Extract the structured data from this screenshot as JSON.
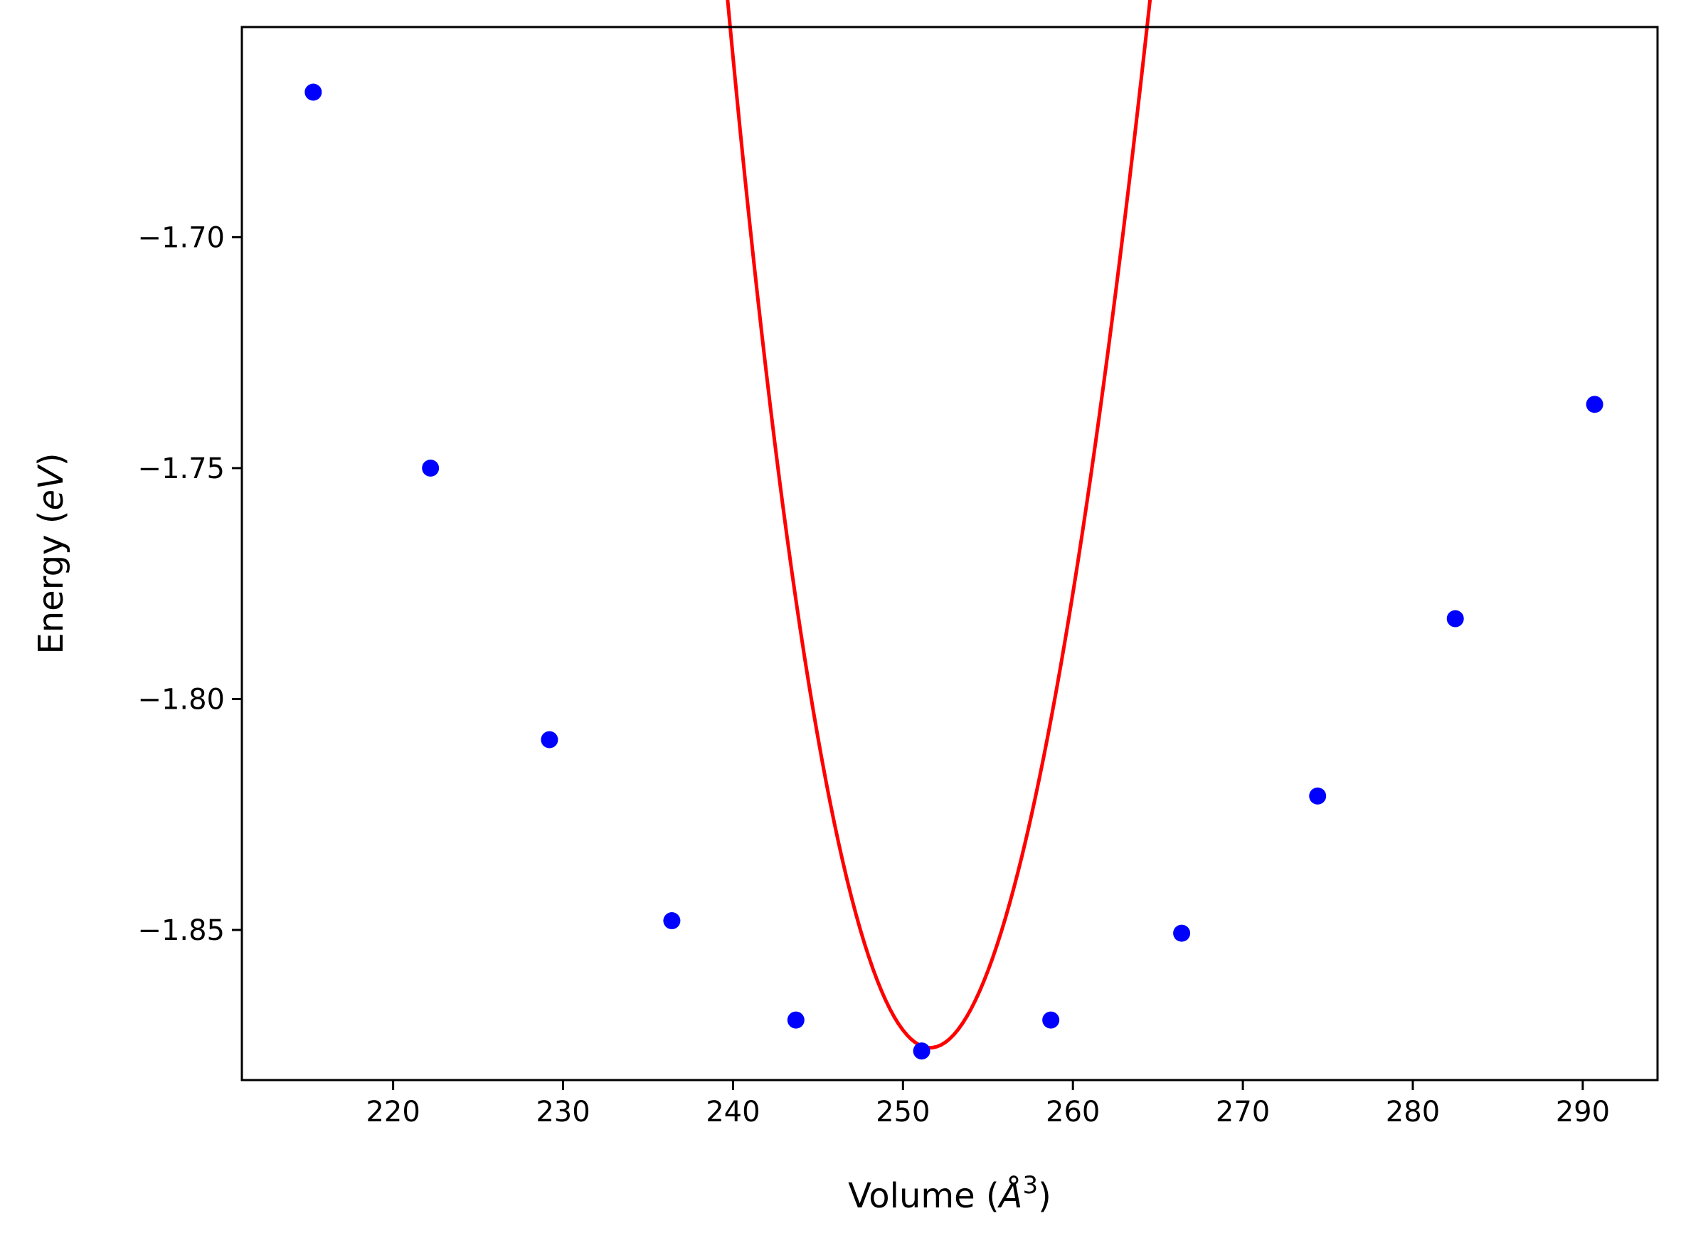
{
  "chart_data": {
    "type": "scatter",
    "title": "",
    "xlabel": {
      "prefix": "Volume (",
      "symbol": "Å",
      "superscript": "3",
      "suffix": ")"
    },
    "ylabel": {
      "prefix": "Energy (",
      "symbol": "eV",
      "suffix": ")"
    },
    "xlim": [
      211.1,
      294.4
    ],
    "ylim": [
      -1.8825,
      -1.6545
    ],
    "xticks": [
      220,
      230,
      240,
      250,
      260,
      270,
      280,
      290
    ],
    "xtick_labels": [
      "220",
      "230",
      "240",
      "250",
      "260",
      "270",
      "280",
      "290"
    ],
    "yticks": [
      -1.7,
      -1.75,
      -1.8,
      -1.85
    ],
    "ytick_labels": [
      "−1.70",
      "−1.75",
      "−1.80",
      "−1.85"
    ],
    "grid": false,
    "legend": "none",
    "series": [
      {
        "type": "scatter",
        "color": "#0000ff",
        "points": [
          {
            "x": 215.3,
            "y": -1.6686
          },
          {
            "x": 222.2,
            "y": -1.75
          },
          {
            "x": 229.2,
            "y": -1.8088
          },
          {
            "x": 236.4,
            "y": -1.848
          },
          {
            "x": 243.7,
            "y": -1.8695
          },
          {
            "x": 251.1,
            "y": -1.8762
          },
          {
            "x": 258.7,
            "y": -1.8695
          },
          {
            "x": 266.4,
            "y": -1.8507
          },
          {
            "x": 274.4,
            "y": -1.821
          },
          {
            "x": 282.5,
            "y": -1.7826
          },
          {
            "x": 290.7,
            "y": -1.7362
          }
        ]
      },
      {
        "type": "line",
        "color": "#ff0000",
        "fit": {
          "E0": -1.8755,
          "V0": 251.6,
          "B0": 0.7415,
          "B0_prime": 4.0
        },
        "x_range": [
          215.3,
          290.7
        ]
      }
    ]
  }
}
